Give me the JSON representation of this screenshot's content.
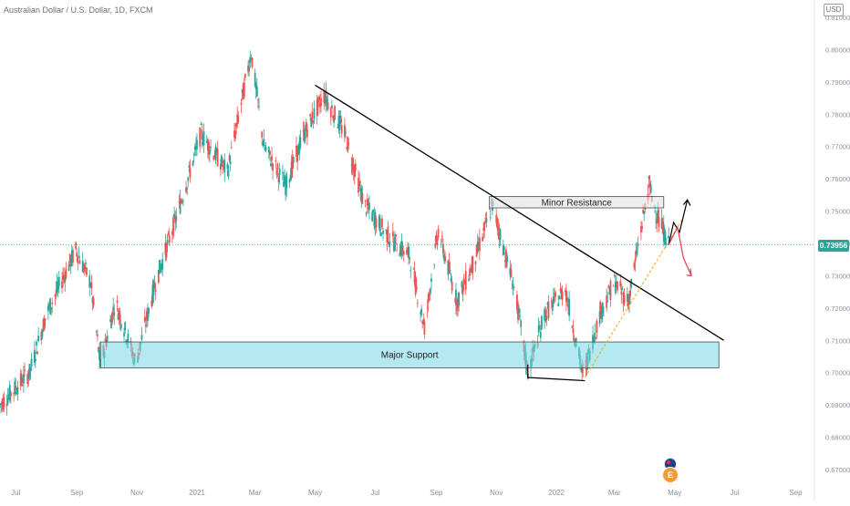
{
  "header": {
    "symbol_title": "Australian Dollar / U.S. Dollar, 1D, FXCM",
    "currency_badge": "USD",
    "last_price_tag": "0.73956"
  },
  "chart_data": {
    "type": "candlestick",
    "title": "Australian Dollar / U.S. Dollar, 1D, FXCM",
    "xlabel": "",
    "ylabel": "",
    "ylim": [
      0.665,
      0.815
    ],
    "y_ticks": [
      "0.81000",
      "0.80000",
      "0.79000",
      "0.78000",
      "0.77000",
      "0.76000",
      "0.75000",
      "0.74000",
      "0.73000",
      "0.72000",
      "0.71000",
      "0.70000",
      "0.69000",
      "0.68000",
      "0.67000"
    ],
    "x_ticks": [
      "Jul",
      "Sep",
      "Nov",
      "2021",
      "Mar",
      "May",
      "Jul",
      "Sep",
      "Nov",
      "2022",
      "Mar",
      "May",
      "Jul",
      "Sep"
    ],
    "x_tick_dates": [
      "2020-07-01",
      "2020-09-01",
      "2020-11-01",
      "2021-01-01",
      "2021-03-01",
      "2021-05-01",
      "2021-07-01",
      "2021-09-01",
      "2021-11-01",
      "2022-01-01",
      "2022-03-01",
      "2022-05-01",
      "2022-07-01",
      "2022-09-01"
    ],
    "up_color": "#26a69a",
    "down_color": "#ef5350",
    "last_price": 0.73956,
    "price_path": [
      {
        "date": "2020-06-15",
        "close": 0.69
      },
      {
        "date": "2020-07-15",
        "close": 0.7
      },
      {
        "date": "2020-08-01",
        "close": 0.718
      },
      {
        "date": "2020-08-31",
        "close": 0.738
      },
      {
        "date": "2020-09-15",
        "close": 0.728
      },
      {
        "date": "2020-09-25",
        "close": 0.702
      },
      {
        "date": "2020-10-10",
        "close": 0.722
      },
      {
        "date": "2020-10-31",
        "close": 0.703
      },
      {
        "date": "2020-11-20",
        "close": 0.728
      },
      {
        "date": "2020-12-15",
        "close": 0.752
      },
      {
        "date": "2021-01-05",
        "close": 0.774
      },
      {
        "date": "2021-02-01",
        "close": 0.762
      },
      {
        "date": "2021-02-25",
        "close": 0.799
      },
      {
        "date": "2021-03-10",
        "close": 0.77
      },
      {
        "date": "2021-04-01",
        "close": 0.758
      },
      {
        "date": "2021-04-20",
        "close": 0.774
      },
      {
        "date": "2021-05-10",
        "close": 0.786
      },
      {
        "date": "2021-05-31",
        "close": 0.774
      },
      {
        "date": "2021-06-20",
        "close": 0.752
      },
      {
        "date": "2021-07-15",
        "close": 0.742
      },
      {
        "date": "2021-08-05",
        "close": 0.736
      },
      {
        "date": "2021-08-20",
        "close": 0.714
      },
      {
        "date": "2021-09-03",
        "close": 0.744
      },
      {
        "date": "2021-09-22",
        "close": 0.722
      },
      {
        "date": "2021-10-10",
        "close": 0.735
      },
      {
        "date": "2021-10-28",
        "close": 0.752
      },
      {
        "date": "2021-11-20",
        "close": 0.725
      },
      {
        "date": "2021-12-03",
        "close": 0.7
      },
      {
        "date": "2021-12-20",
        "close": 0.718
      },
      {
        "date": "2022-01-10",
        "close": 0.726
      },
      {
        "date": "2022-01-28",
        "close": 0.699
      },
      {
        "date": "2022-02-15",
        "close": 0.719
      },
      {
        "date": "2022-03-01",
        "close": 0.728
      },
      {
        "date": "2022-03-15",
        "close": 0.722
      },
      {
        "date": "2022-04-05",
        "close": 0.758
      },
      {
        "date": "2022-04-14",
        "close": 0.748
      },
      {
        "date": "2022-04-25",
        "close": 0.7396
      }
    ],
    "annotations": [
      {
        "type": "zone",
        "label": "Minor Resistance",
        "x_start": "2021-10-25",
        "x_end": "2022-04-20",
        "y_low": 0.751,
        "y_high": 0.7545
      },
      {
        "type": "zone",
        "label": "Major Support",
        "x_start": "2020-09-25",
        "x_end": "2022-06-15",
        "y_low": 0.7015,
        "y_high": 0.7095
      },
      {
        "type": "trendline",
        "label": "",
        "x_start": "2021-05-01",
        "y_start": 0.789,
        "x_end": "2022-06-20",
        "y_end": 0.71,
        "color": "#000000"
      },
      {
        "type": "trendline",
        "label": "",
        "x_start": "2022-01-30",
        "y_start": 0.6985,
        "x_end": "2022-05-10",
        "y_end": 0.748,
        "color": "#f5a623"
      }
    ]
  }
}
